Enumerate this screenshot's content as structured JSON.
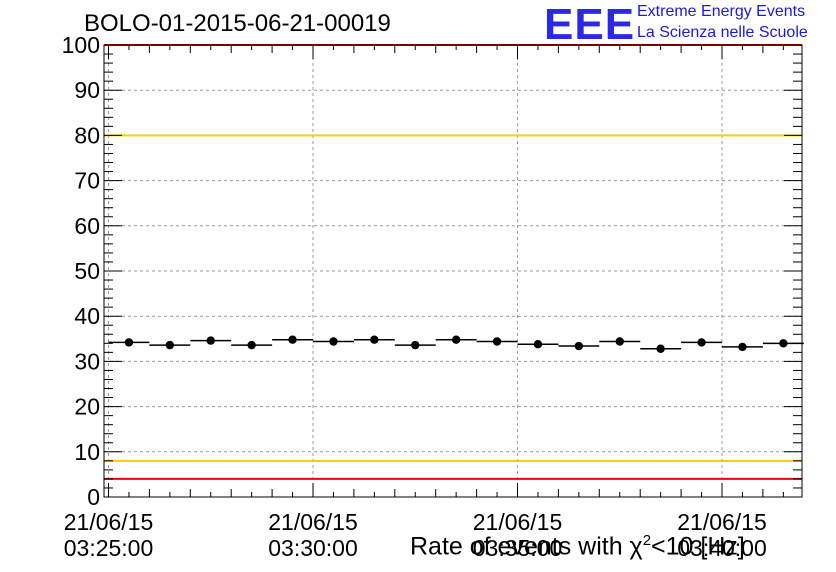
{
  "title": "BOLO-01-2015-06-21-00019",
  "logo": {
    "letters": "EEE",
    "line1": "Extreme Energy Events",
    "line2": "La Scienza nelle Scuole"
  },
  "chart_data": {
    "type": "scatter",
    "xlabel_prefix": "Rate of events with χ",
    "xlabel_sup": "2",
    "xlabel_suffix": "<10 [Hz]",
    "ylim": [
      0,
      100
    ],
    "yticks": [
      0,
      10,
      20,
      30,
      40,
      50,
      60,
      70,
      80,
      90,
      100
    ],
    "xticks": [
      {
        "date": "21/06/15",
        "time": "03:25:00"
      },
      {
        "date": "21/06/15",
        "time": "03:30:00"
      },
      {
        "date": "21/06/15",
        "time": "03:35:00"
      },
      {
        "date": "21/06/15",
        "time": "03:40:00"
      }
    ],
    "grid": true,
    "reference_lines": [
      {
        "value": 100,
        "color": "#ff0000"
      },
      {
        "value": 80,
        "color": "#ffcc00"
      },
      {
        "value": 8,
        "color": "#ffcc00"
      },
      {
        "value": 4,
        "color": "#ff0000"
      }
    ],
    "series": [
      {
        "x": [
          "03:25:30",
          "03:26:30",
          "03:27:30",
          "03:28:30",
          "03:29:30",
          "03:30:30",
          "03:31:30",
          "03:32:30",
          "03:33:30",
          "03:34:30",
          "03:35:30",
          "03:36:30",
          "03:37:30",
          "03:38:30",
          "03:39:30",
          "03:40:30",
          "03:41:30"
        ],
        "values": [
          34.2,
          33.6,
          34.6,
          33.6,
          34.8,
          34.4,
          34.8,
          33.6,
          34.8,
          34.4,
          33.8,
          33.4,
          34.4,
          32.8,
          34.2,
          33.2,
          34.0
        ],
        "color": "#000000"
      }
    ]
  }
}
